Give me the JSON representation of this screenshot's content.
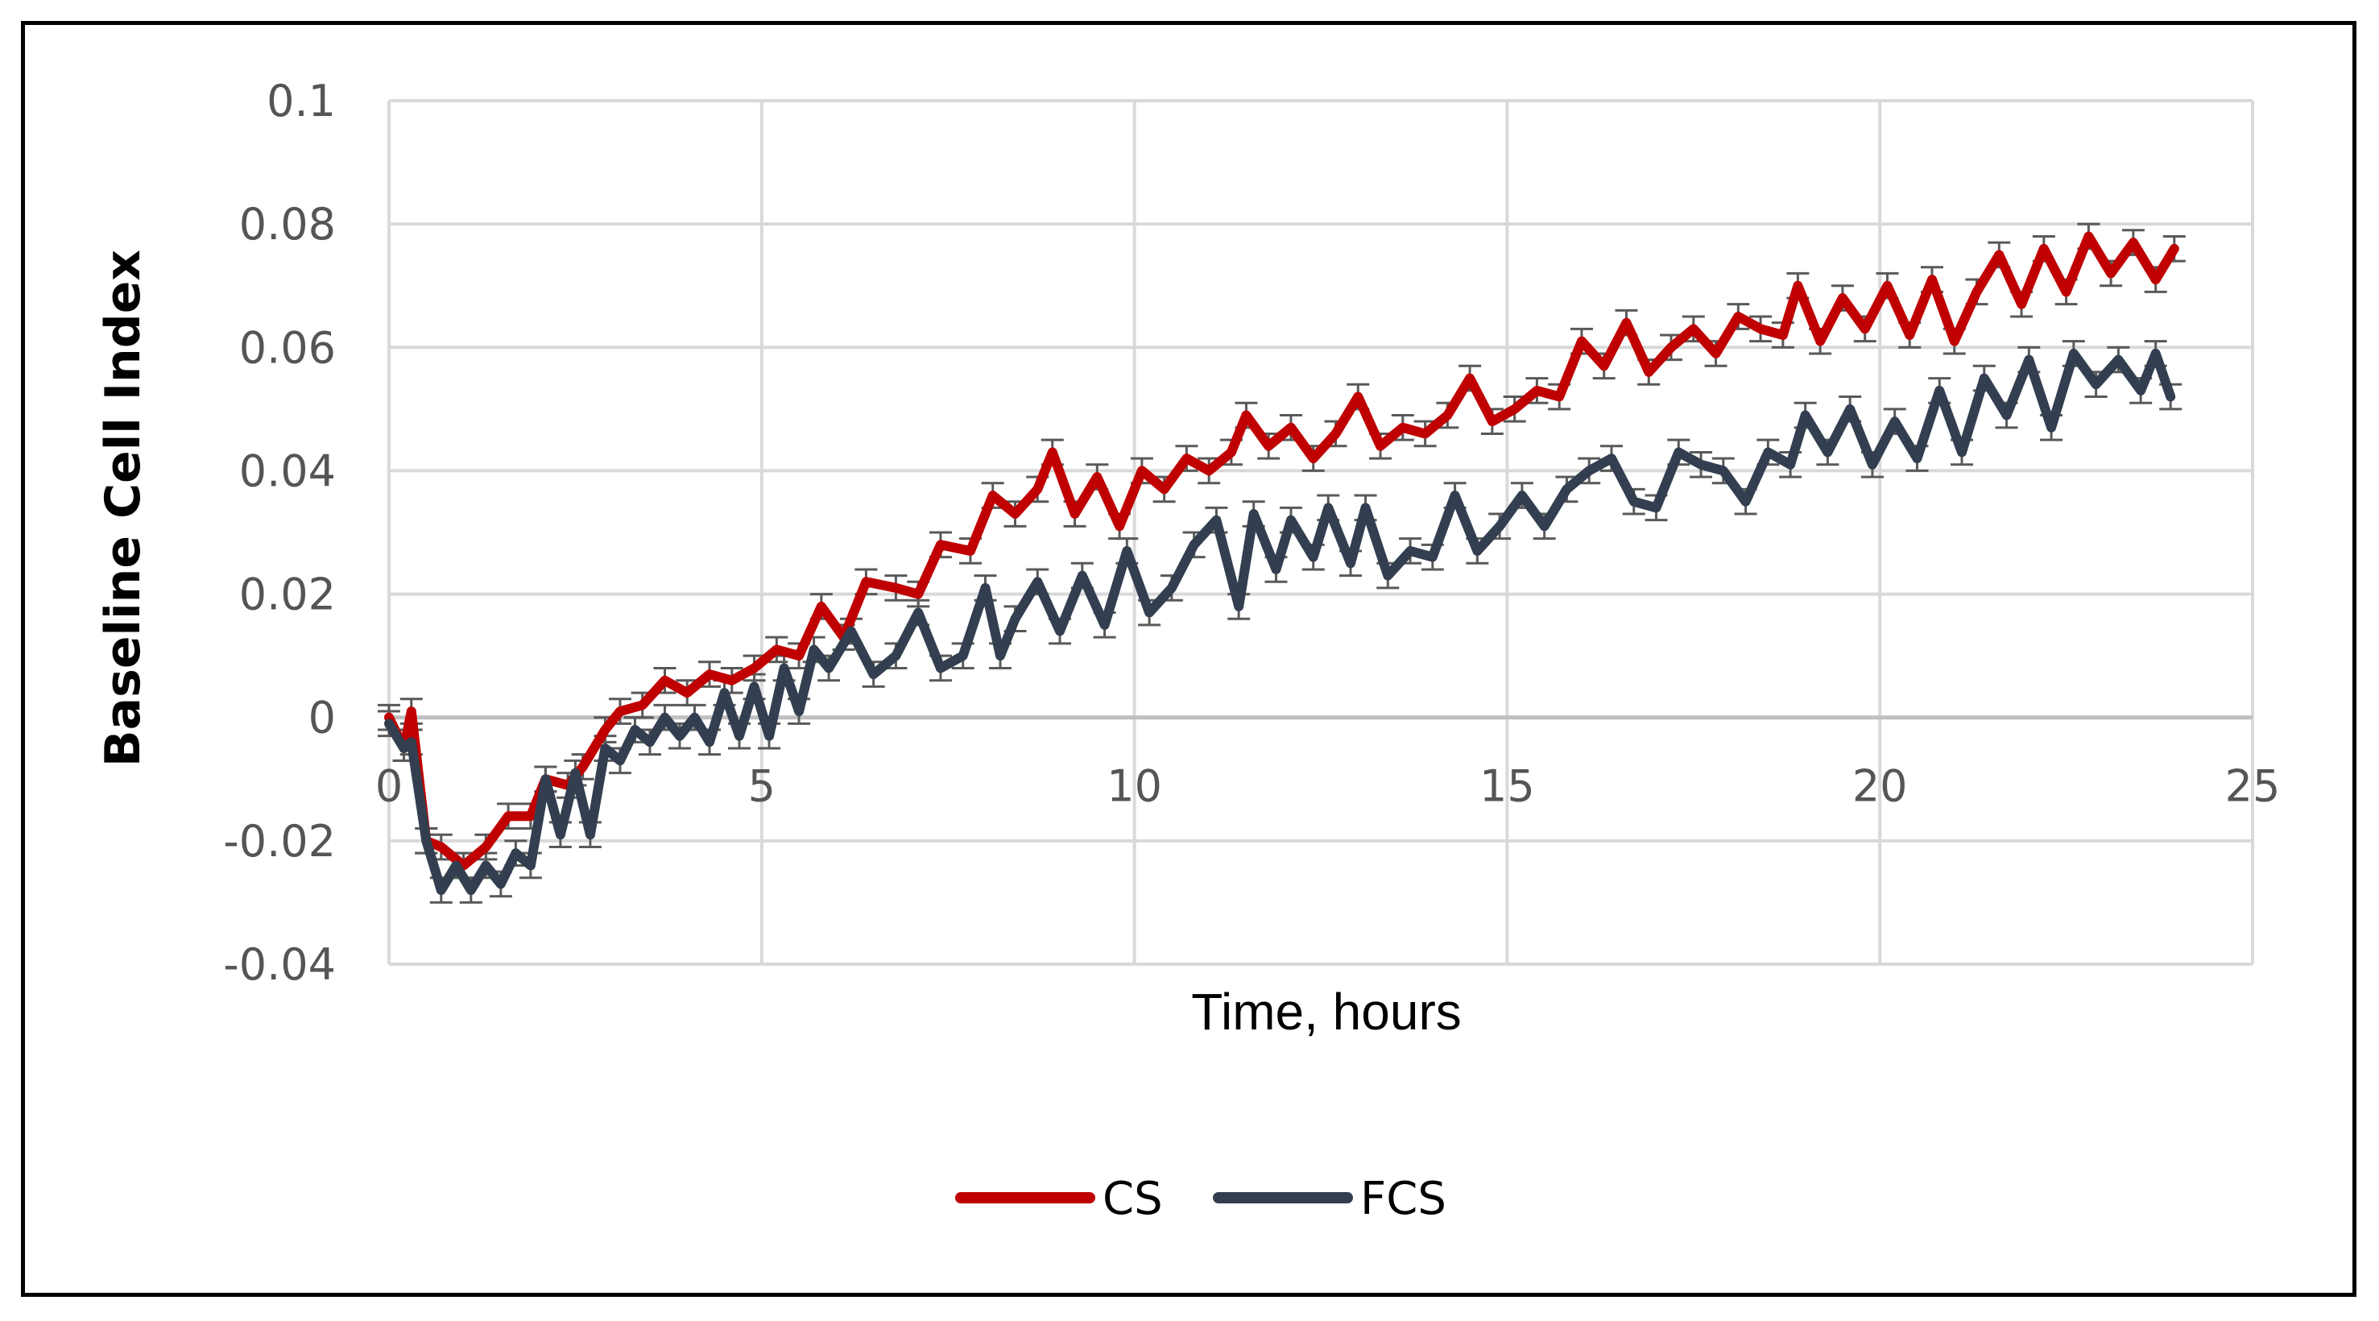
{
  "chart_data": {
    "type": "line",
    "title": "",
    "xlabel": "Time, hours",
    "ylabel": "Baseline Cell Index",
    "xlim": [
      0,
      25
    ],
    "ylim": [
      -0.04,
      0.1
    ],
    "xticks": [
      0,
      5,
      10,
      15,
      20,
      25
    ],
    "yticks": [
      -0.04,
      -0.02,
      0,
      0.02,
      0.04,
      0.06,
      0.08,
      0.1
    ],
    "xtick_labels": [
      "0",
      "5",
      "10",
      "15",
      "20",
      "25"
    ],
    "ytick_labels": [
      "-0.04",
      "-0.02",
      "0",
      "0.02",
      "0.04",
      "0.06",
      "0.08",
      "0.1"
    ],
    "grid": true,
    "legend_position": "bottom",
    "error_bars": true,
    "series": [
      {
        "name": "CS",
        "color": "#C00000",
        "x": [
          0,
          0.2,
          0.3,
          0.5,
          0.7,
          1.0,
          1.3,
          1.6,
          1.9,
          2.1,
          2.4,
          2.6,
          2.9,
          3.1,
          3.4,
          3.7,
          4.0,
          4.3,
          4.6,
          4.9,
          5.2,
          5.5,
          5.8,
          6.1,
          6.4,
          6.8,
          7.1,
          7.4,
          7.8,
          8.1,
          8.4,
          8.7,
          8.9,
          9.2,
          9.5,
          9.8,
          10.1,
          10.4,
          10.7,
          11.0,
          11.3,
          11.5,
          11.8,
          12.1,
          12.4,
          12.7,
          13.0,
          13.3,
          13.6,
          13.9,
          14.2,
          14.5,
          14.8,
          15.1,
          15.4,
          15.7,
          16.0,
          16.3,
          16.6,
          16.9,
          17.2,
          17.5,
          17.8,
          18.1,
          18.4,
          18.7,
          18.9,
          19.2,
          19.5,
          19.8,
          20.1,
          20.4,
          20.7,
          21.0,
          21.3,
          21.6,
          21.9,
          22.2,
          22.5,
          22.8,
          23.1,
          23.4,
          23.7,
          23.95
        ],
        "y": [
          0.0,
          -0.005,
          0.001,
          -0.02,
          -0.021,
          -0.024,
          -0.021,
          -0.016,
          -0.016,
          -0.01,
          -0.011,
          -0.008,
          -0.002,
          0.001,
          0.002,
          0.006,
          0.004,
          0.007,
          0.006,
          0.008,
          0.011,
          0.01,
          0.018,
          0.013,
          0.022,
          0.021,
          0.02,
          0.028,
          0.027,
          0.036,
          0.033,
          0.037,
          0.043,
          0.033,
          0.039,
          0.031,
          0.04,
          0.037,
          0.042,
          0.04,
          0.043,
          0.049,
          0.044,
          0.047,
          0.042,
          0.046,
          0.052,
          0.044,
          0.047,
          0.046,
          0.049,
          0.055,
          0.048,
          0.05,
          0.053,
          0.052,
          0.061,
          0.057,
          0.064,
          0.056,
          0.06,
          0.063,
          0.059,
          0.065,
          0.063,
          0.062,
          0.07,
          0.061,
          0.068,
          0.063,
          0.07,
          0.062,
          0.071,
          0.061,
          0.069,
          0.075,
          0.067,
          0.076,
          0.069,
          0.078,
          0.072,
          0.077,
          0.071,
          0.076
        ],
        "err": [
          0.002,
          0.002,
          0.002,
          0.002,
          0.002,
          0.002,
          0.002,
          0.002,
          0.002,
          0.002,
          0.002,
          0.002,
          0.002,
          0.002,
          0.002,
          0.002,
          0.002,
          0.002,
          0.002,
          0.002,
          0.002,
          0.002,
          0.002,
          0.002,
          0.002,
          0.002,
          0.002,
          0.002,
          0.002,
          0.002,
          0.002,
          0.002,
          0.002,
          0.002,
          0.002,
          0.002,
          0.002,
          0.002,
          0.002,
          0.002,
          0.002,
          0.002,
          0.002,
          0.002,
          0.002,
          0.002,
          0.002,
          0.002,
          0.002,
          0.002,
          0.002,
          0.002,
          0.002,
          0.002,
          0.002,
          0.002,
          0.002,
          0.002,
          0.002,
          0.002,
          0.002,
          0.002,
          0.002,
          0.002,
          0.002,
          0.002,
          0.002,
          0.002,
          0.002,
          0.002,
          0.002,
          0.002,
          0.002,
          0.002,
          0.002,
          0.002,
          0.002,
          0.002,
          0.002,
          0.002,
          0.002,
          0.002,
          0.002,
          0.002
        ]
      },
      {
        "name": "FCS",
        "color": "#333F50",
        "x": [
          0,
          0.2,
          0.3,
          0.5,
          0.7,
          0.9,
          1.1,
          1.3,
          1.5,
          1.7,
          1.9,
          2.1,
          2.3,
          2.5,
          2.7,
          2.9,
          3.1,
          3.3,
          3.5,
          3.7,
          3.9,
          4.1,
          4.3,
          4.5,
          4.7,
          4.9,
          5.1,
          5.3,
          5.5,
          5.7,
          5.9,
          6.2,
          6.5,
          6.8,
          7.1,
          7.4,
          7.7,
          8.0,
          8.2,
          8.4,
          8.7,
          9.0,
          9.3,
          9.6,
          9.9,
          10.2,
          10.5,
          10.8,
          11.1,
          11.4,
          11.6,
          11.9,
          12.1,
          12.4,
          12.6,
          12.9,
          13.1,
          13.4,
          13.7,
          14.0,
          14.3,
          14.6,
          14.9,
          15.2,
          15.5,
          15.8,
          16.1,
          16.4,
          16.7,
          17.0,
          17.3,
          17.6,
          17.9,
          18.2,
          18.5,
          18.8,
          19.0,
          19.3,
          19.6,
          19.9,
          20.2,
          20.5,
          20.8,
          21.1,
          21.4,
          21.7,
          22.0,
          22.3,
          22.6,
          22.9,
          23.2,
          23.5,
          23.7,
          23.9
        ],
        "y": [
          -0.001,
          -0.005,
          -0.004,
          -0.02,
          -0.028,
          -0.024,
          -0.028,
          -0.024,
          -0.027,
          -0.022,
          -0.024,
          -0.01,
          -0.019,
          -0.009,
          -0.019,
          -0.005,
          -0.007,
          -0.002,
          -0.004,
          0.0,
          -0.003,
          0.0,
          -0.004,
          0.004,
          -0.003,
          0.005,
          -0.003,
          0.008,
          0.001,
          0.011,
          0.008,
          0.014,
          0.007,
          0.01,
          0.017,
          0.008,
          0.01,
          0.021,
          0.01,
          0.016,
          0.022,
          0.014,
          0.023,
          0.015,
          0.027,
          0.017,
          0.021,
          0.028,
          0.032,
          0.018,
          0.033,
          0.024,
          0.032,
          0.026,
          0.034,
          0.025,
          0.034,
          0.023,
          0.027,
          0.026,
          0.036,
          0.027,
          0.031,
          0.036,
          0.031,
          0.037,
          0.04,
          0.042,
          0.035,
          0.034,
          0.043,
          0.041,
          0.04,
          0.035,
          0.043,
          0.041,
          0.049,
          0.043,
          0.05,
          0.041,
          0.048,
          0.042,
          0.053,
          0.043,
          0.055,
          0.049,
          0.058,
          0.047,
          0.059,
          0.054,
          0.058,
          0.053,
          0.059,
          0.052
        ],
        "err": [
          0.002,
          0.002,
          0.002,
          0.002,
          0.002,
          0.002,
          0.002,
          0.002,
          0.002,
          0.002,
          0.002,
          0.002,
          0.002,
          0.002,
          0.002,
          0.002,
          0.002,
          0.002,
          0.002,
          0.002,
          0.002,
          0.002,
          0.002,
          0.002,
          0.002,
          0.002,
          0.002,
          0.002,
          0.002,
          0.002,
          0.002,
          0.002,
          0.002,
          0.002,
          0.002,
          0.002,
          0.002,
          0.002,
          0.002,
          0.002,
          0.002,
          0.002,
          0.002,
          0.002,
          0.002,
          0.002,
          0.002,
          0.002,
          0.002,
          0.002,
          0.002,
          0.002,
          0.002,
          0.002,
          0.002,
          0.002,
          0.002,
          0.002,
          0.002,
          0.002,
          0.002,
          0.002,
          0.002,
          0.002,
          0.002,
          0.002,
          0.002,
          0.002,
          0.002,
          0.002,
          0.002,
          0.002,
          0.002,
          0.002,
          0.002,
          0.002,
          0.002,
          0.002,
          0.002,
          0.002,
          0.002,
          0.002,
          0.002,
          0.002,
          0.002,
          0.002,
          0.002,
          0.002,
          0.002,
          0.002,
          0.002,
          0.002,
          0.002,
          0.002
        ]
      }
    ]
  },
  "colors": {
    "grid": "#D9D9D9",
    "axis": "#BFBFBF",
    "error_bar": "#595959"
  }
}
